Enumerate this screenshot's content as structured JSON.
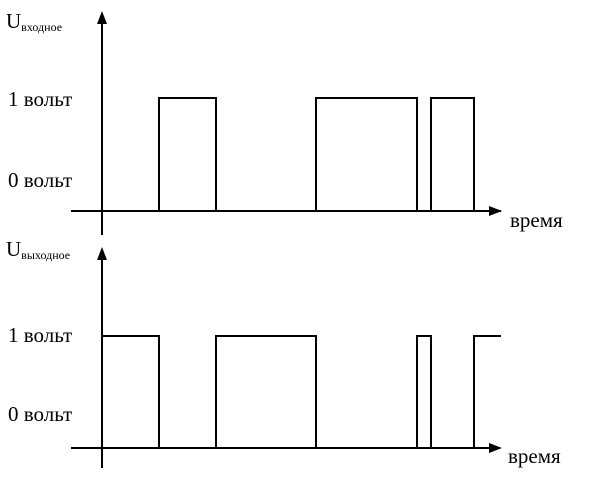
{
  "top_chart": {
    "y_main": "U",
    "y_sub": "входное",
    "level_high": "1 вольт",
    "level_low": "0 вольт",
    "x_label": "время"
  },
  "bottom_chart": {
    "y_main": "U",
    "y_sub": "выходное",
    "level_high": "1 вольт",
    "level_low": "0 вольт",
    "x_label": "время"
  },
  "chart_data": [
    {
      "type": "line",
      "step": true,
      "title": "",
      "ylabel": "Uвходное",
      "xlabel": "время",
      "levels": [
        "0 вольт",
        "1 вольт"
      ],
      "x": [
        0,
        57,
        57,
        114,
        114,
        214,
        214,
        315,
        315,
        329,
        329,
        372,
        372,
        398
      ],
      "y": [
        0,
        0,
        1,
        1,
        0,
        0,
        1,
        1,
        0,
        0,
        1,
        1,
        0,
        0
      ],
      "xlim": [
        0,
        398
      ],
      "ylim": [
        0,
        1
      ]
    },
    {
      "type": "line",
      "step": true,
      "title": "",
      "ylabel": "Uвыходное",
      "xlabel": "время",
      "levels": [
        "0 вольт",
        "1 вольт"
      ],
      "x": [
        0,
        57,
        57,
        114,
        114,
        214,
        214,
        315,
        315,
        329,
        329,
        372,
        372,
        398
      ],
      "y": [
        1,
        1,
        0,
        0,
        1,
        1,
        0,
        0,
        1,
        1,
        0,
        0,
        1,
        1
      ],
      "xlim": [
        0,
        398
      ],
      "ylim": [
        0,
        1
      ]
    }
  ]
}
